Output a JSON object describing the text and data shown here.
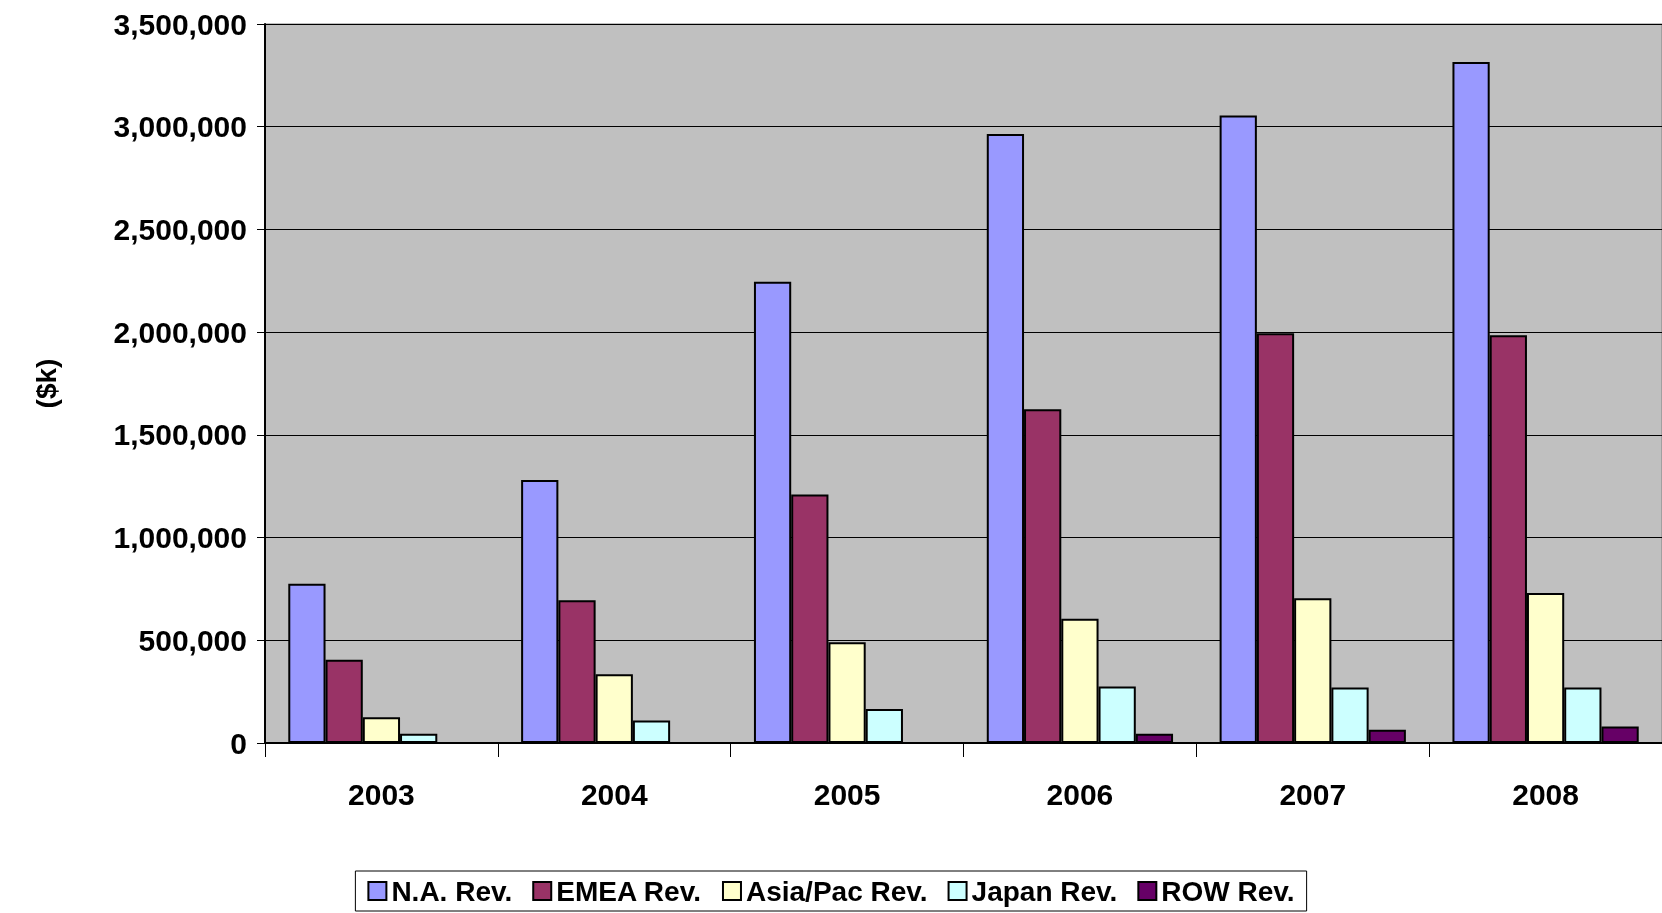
{
  "chart_data": {
    "type": "bar",
    "ylabel": "($k)",
    "categories": [
      "2003",
      "2004",
      "2005",
      "2006",
      "2007",
      "2008"
    ],
    "series": [
      {
        "name": "N.A. Rev.",
        "color": "#9999ff",
        "values": [
          775000,
          1280000,
          2245000,
          2965000,
          3055000,
          3315000
        ]
      },
      {
        "name": "EMEA Rev.",
        "color": "#993366",
        "values": [
          405000,
          695000,
          1210000,
          1625000,
          1995000,
          1985000
        ]
      },
      {
        "name": "Asia/Pac Rev.",
        "color": "#ffffcc",
        "values": [
          125000,
          335000,
          490000,
          605000,
          705000,
          730000
        ]
      },
      {
        "name": "Japan Rev.",
        "color": "#ccffff",
        "values": [
          45000,
          110000,
          165000,
          275000,
          270000,
          270000
        ]
      },
      {
        "name": "ROW Rev.",
        "color": "#660066",
        "values": [
          null,
          null,
          null,
          45000,
          65000,
          80000
        ]
      }
    ],
    "ylim": [
      0,
      3500000
    ],
    "yticks": [
      0,
      {
        "value": 500000,
        "label": "500,000"
      },
      {
        "value": 1000000,
        "label": "1,000,000"
      },
      {
        "value": 1500000,
        "label": "1,500,000"
      },
      {
        "value": 2000000,
        "label": "2,000,000"
      },
      {
        "value": 2500000,
        "label": "2,500,000"
      },
      {
        "value": 3000000,
        "label": "3,000,000"
      },
      {
        "value": 3500000,
        "label": "3,500,000"
      }
    ],
    "grid": "y",
    "legend": "bottom"
  }
}
